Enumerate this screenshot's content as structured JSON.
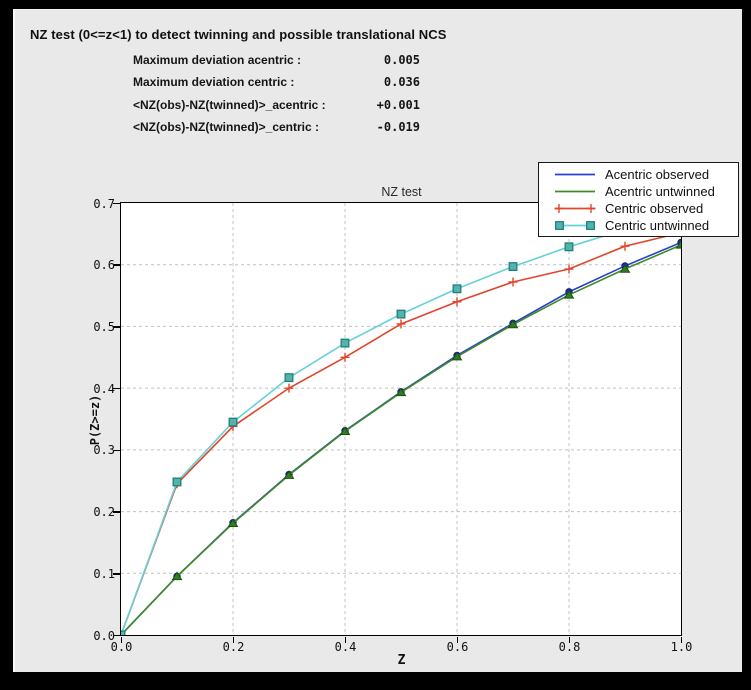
{
  "window": {
    "bg": "#e9e9e9",
    "frame": "#000000"
  },
  "header": {
    "title": "NZ test (0<=z<1) to detect twinning and possible translational NCS"
  },
  "stats": {
    "rows": [
      {
        "label": "Maximum deviation acentric :",
        "value": "0.005"
      },
      {
        "label": "Maximum deviation centric :",
        "value": "0.036"
      },
      {
        "label": "<NZ(obs)-NZ(twinned)>_acentric :",
        "value": "+0.001"
      },
      {
        "label": "<NZ(obs)-NZ(twinned)>_centric :",
        "value": "-0.019"
      }
    ]
  },
  "chart_data": {
    "type": "line",
    "title": "NZ test",
    "xlabel": "Z",
    "ylabel": "P(Z>=z)",
    "xlim": [
      0.0,
      1.0
    ],
    "ylim": [
      0.0,
      0.7
    ],
    "grid": true,
    "grid_color": "#c0c0c0",
    "grid_x": [
      0.2,
      0.4,
      0.6,
      0.8
    ],
    "grid_y": [
      0.1,
      0.2,
      0.3,
      0.4,
      0.5,
      0.6
    ],
    "xtick_values": [
      0.0,
      0.2,
      0.4,
      0.6,
      0.8,
      1.0
    ],
    "xtick_labels": [
      "0.0",
      "0.2",
      "0.4",
      "0.6",
      "0.8",
      "1.0"
    ],
    "ytick_values": [
      0.0,
      0.1,
      0.2,
      0.3,
      0.4,
      0.5,
      0.6,
      0.7
    ],
    "ytick_labels": [
      "0.0",
      "0.1",
      "0.2",
      "0.3",
      "0.4",
      "0.5",
      "0.6",
      "0.7"
    ],
    "legend_position": "top-right",
    "x": [
      0.0,
      0.1,
      0.2,
      0.3,
      0.4,
      0.5,
      0.6,
      0.7,
      0.8,
      0.9,
      1.0
    ],
    "series": [
      {
        "name": "Acentric observed",
        "color": "#2b3fd0",
        "marker": "circle",
        "marker_fill": "#1c2fae",
        "marker_edge": "#141f7a",
        "values": [
          0.0,
          0.095,
          0.182,
          0.26,
          0.331,
          0.394,
          0.453,
          0.505,
          0.556,
          0.598,
          0.636
        ]
      },
      {
        "name": "Acentric untwinned",
        "color": "#3f8c23",
        "marker": "triangle",
        "marker_fill": "#2e7d1e",
        "marker_edge": "#1c4f12",
        "values": [
          0.0,
          0.095,
          0.181,
          0.259,
          0.33,
          0.393,
          0.451,
          0.503,
          0.551,
          0.593,
          0.632
        ]
      },
      {
        "name": "Centric observed",
        "color": "#e0462c",
        "marker": "plus",
        "marker_fill": "#e0462c",
        "marker_edge": "#e0462c",
        "values": [
          0.0,
          0.245,
          0.338,
          0.4,
          0.45,
          0.504,
          0.54,
          0.572,
          0.593,
          0.63,
          0.652
        ]
      },
      {
        "name": "Centric untwinned",
        "color": "#66d2d8",
        "marker": "square",
        "marker_fill": "#53b4ae",
        "marker_edge": "#1f7f7c",
        "values": [
          0.0,
          0.248,
          0.345,
          0.417,
          0.473,
          0.52,
          0.561,
          0.597,
          0.629,
          0.657,
          0.683
        ]
      }
    ]
  }
}
